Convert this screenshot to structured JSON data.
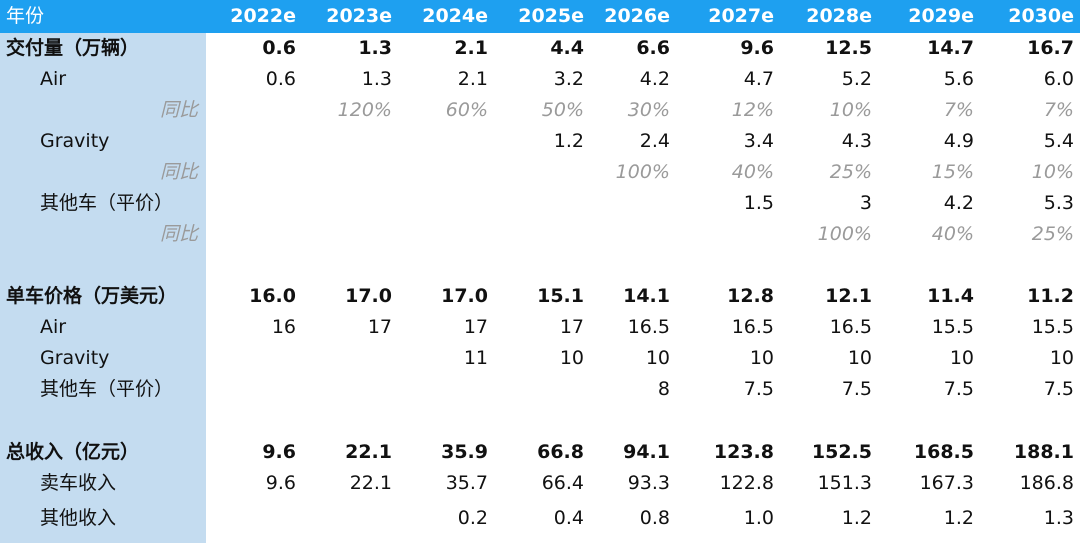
{
  "header": {
    "label": "年份",
    "years": [
      "2022e",
      "2023e",
      "2024e",
      "2025e",
      "2026e",
      "2027e",
      "2028e",
      "2029e",
      "2030e"
    ]
  },
  "rows": [
    {
      "label": "交付量（万辆）",
      "values": [
        "0.6",
        "1.3",
        "2.1",
        "4.4",
        "6.6",
        "9.6",
        "12.5",
        "14.7",
        "16.7"
      ]
    },
    {
      "label": "Air",
      "values": [
        "0.6",
        "1.3",
        "2.1",
        "3.2",
        "4.2",
        "4.7",
        "5.2",
        "5.6",
        "6.0"
      ]
    },
    {
      "label": "同比",
      "values": [
        "",
        "120%",
        "60%",
        "50%",
        "30%",
        "12%",
        "10%",
        "7%",
        "7%"
      ]
    },
    {
      "label": "Gravity",
      "values": [
        "",
        "",
        "",
        "1.2",
        "2.4",
        "3.4",
        "4.3",
        "4.9",
        "5.4"
      ]
    },
    {
      "label": "同比",
      "values": [
        "",
        "",
        "",
        "",
        "100%",
        "40%",
        "25%",
        "15%",
        "10%"
      ]
    },
    {
      "label": "其他车（平价）",
      "values": [
        "",
        "",
        "",
        "",
        "",
        "1.5",
        "3",
        "4.2",
        "5.3"
      ]
    },
    {
      "label": "同比",
      "values": [
        "",
        "",
        "",
        "",
        "",
        "",
        "100%",
        "40%",
        "25%"
      ]
    },
    {
      "label": "单车价格（万美元）",
      "values": [
        "16.0",
        "17.0",
        "17.0",
        "15.1",
        "14.1",
        "12.8",
        "12.1",
        "11.4",
        "11.2"
      ]
    },
    {
      "label": "Air",
      "values": [
        "16",
        "17",
        "17",
        "17",
        "16.5",
        "16.5",
        "16.5",
        "15.5",
        "15.5"
      ]
    },
    {
      "label": "Gravity",
      "values": [
        "",
        "",
        "11",
        "10",
        "10",
        "10",
        "10",
        "10",
        "10"
      ]
    },
    {
      "label": "其他车（平价）",
      "values": [
        "",
        "",
        "",
        "",
        "8",
        "7.5",
        "7.5",
        "7.5",
        "7.5"
      ]
    },
    {
      "label": "总收入（亿元）",
      "values": [
        "9.6",
        "22.1",
        "35.9",
        "66.8",
        "94.1",
        "123.8",
        "152.5",
        "168.5",
        "188.1"
      ]
    },
    {
      "label": "卖车收入",
      "values": [
        "9.6",
        "22.1",
        "35.7",
        "66.4",
        "93.3",
        "122.8",
        "151.3",
        "167.3",
        "186.8"
      ]
    },
    {
      "label": "其他收入",
      "values": [
        "",
        "",
        "0.2",
        "0.4",
        "0.8",
        "1.0",
        "1.2",
        "1.2",
        "1.3"
      ]
    }
  ]
}
